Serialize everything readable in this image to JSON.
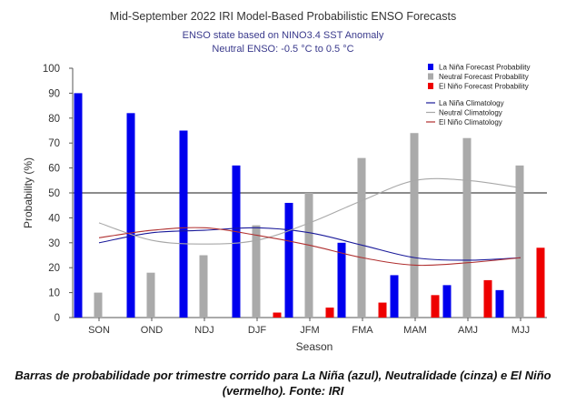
{
  "chart_data": {
    "type": "bar",
    "title": "Mid-September 2022 IRI Model-Based Probabilistic ENSO Forecasts",
    "subtitle_lines": [
      "ENSO state based on NINO3.4 SST Anomaly",
      "Neutral ENSO: -0.5 °C to 0.5 °C"
    ],
    "xlabel": "Season",
    "ylabel": "Probability (%)",
    "ylim": [
      0,
      100
    ],
    "yticks": [
      0,
      10,
      20,
      30,
      40,
      50,
      60,
      70,
      80,
      90,
      100
    ],
    "reference_line": 50,
    "categories": [
      "SON",
      "OND",
      "NDJ",
      "DJF",
      "JFM",
      "FMA",
      "MAM",
      "AMJ",
      "MJJ"
    ],
    "series": [
      {
        "name": "La Niña Forecast Probability",
        "color": "#0000ee",
        "values": [
          90,
          82,
          75,
          61,
          46,
          30,
          17,
          13,
          11
        ]
      },
      {
        "name": "Neutral Forecast Probability",
        "color": "#aaaaaa",
        "values": [
          10,
          18,
          25,
          37,
          50,
          64,
          74,
          72,
          61
        ]
      },
      {
        "name": "El Niño Forecast Probability",
        "color": "#ee0000",
        "values": [
          0,
          0,
          0,
          2,
          4,
          6,
          9,
          15,
          28
        ]
      }
    ],
    "climatology": [
      {
        "name": "La Niña Climatology",
        "color": "#1a1a9a",
        "values": [
          30,
          34,
          35,
          36,
          34,
          29,
          24,
          23,
          24
        ]
      },
      {
        "name": "Neutral Climatology",
        "color": "#a8a8a8",
        "values": [
          38,
          31,
          29.5,
          31,
          38,
          47,
          55,
          55,
          52
        ]
      },
      {
        "name": "El Niño Climatology",
        "color": "#b03030",
        "values": [
          32,
          35,
          36,
          33,
          29,
          24,
          21,
          22,
          24
        ]
      }
    ],
    "grid": false,
    "legend_position": "top-right"
  },
  "caption": "Barras de probabilidade por trimestre corrido para La Niña (azul), Neutralidade (cinza) e El Niño (vermelho). Fonte: IRI"
}
